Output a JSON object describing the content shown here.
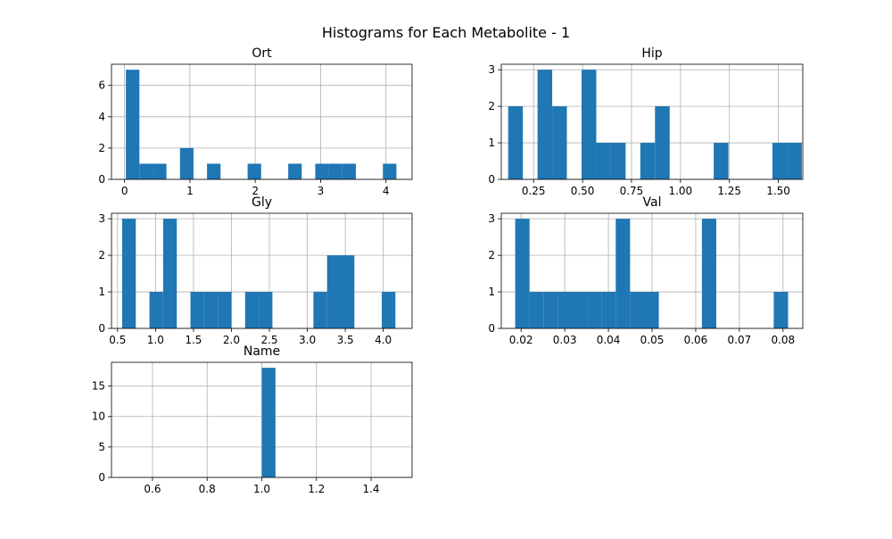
{
  "figure": {
    "suptitle": "Histograms for Each Metabolite - 1"
  },
  "style": {
    "bar_color": "#1f77b4",
    "grid_color": "#b0b0b0"
  },
  "chart_data": [
    {
      "type": "bar",
      "title": "Ort",
      "xlim": [
        -0.2,
        4.4
      ],
      "ylim": [
        0,
        7.35
      ],
      "xticks": [
        0,
        1,
        2,
        3,
        4
      ],
      "xtick_labels": [
        "0",
        "1",
        "2",
        "3",
        "4"
      ],
      "yticks": [
        0,
        2,
        4,
        6
      ],
      "ytick_labels": [
        "0",
        "2",
        "4",
        "6"
      ],
      "grid": true,
      "bin_edges": [
        0.02,
        0.227,
        0.434,
        0.641,
        0.848,
        1.055,
        1.262,
        1.469,
        1.676,
        1.883,
        2.09,
        2.297,
        2.504,
        2.711,
        2.918,
        3.125,
        3.332,
        3.539,
        3.746,
        3.953,
        4.16
      ],
      "counts": [
        7,
        1,
        1,
        0,
        2,
        0,
        1,
        0,
        0,
        1,
        0,
        0,
        1,
        0,
        1,
        1,
        1,
        0,
        0,
        1
      ]
    },
    {
      "type": "bar",
      "title": "Hip",
      "xlim": [
        0.085,
        1.625
      ],
      "ylim": [
        0,
        3.15
      ],
      "xticks": [
        0.25,
        0.5,
        0.75,
        1.0,
        1.25,
        1.5
      ],
      "xtick_labels": [
        "0.25",
        "0.50",
        "0.75",
        "1.00",
        "1.25",
        "1.50"
      ],
      "yticks": [
        0,
        1,
        2,
        3
      ],
      "ytick_labels": [
        "0",
        "1",
        "2",
        "3"
      ],
      "grid": true,
      "bin_edges": [
        0.12,
        0.195,
        0.27,
        0.345,
        0.42,
        0.495,
        0.57,
        0.645,
        0.72,
        0.795,
        0.87,
        0.945,
        1.02,
        1.095,
        1.17,
        1.245,
        1.32,
        1.395,
        1.47,
        1.545,
        1.62
      ],
      "counts": [
        2,
        0,
        3,
        2,
        0,
        3,
        1,
        1,
        0,
        1,
        2,
        0,
        0,
        0,
        1,
        0,
        0,
        0,
        1,
        1
      ]
    },
    {
      "type": "bar",
      "title": "Gly",
      "xlim": [
        0.42,
        4.38
      ],
      "ylim": [
        0,
        3.15
      ],
      "xticks": [
        0.5,
        1.0,
        1.5,
        2.0,
        2.5,
        3.0,
        3.5,
        4.0
      ],
      "xtick_labels": [
        "0.5",
        "1.0",
        "1.5",
        "2.0",
        "2.5",
        "3.0",
        "3.5",
        "4.0"
      ],
      "yticks": [
        0,
        1,
        2,
        3
      ],
      "ytick_labels": [
        "0",
        "1",
        "2",
        "3"
      ],
      "grid": true,
      "bin_edges": [
        0.56,
        0.74,
        0.92,
        1.1,
        1.28,
        1.46,
        1.64,
        1.82,
        2.0,
        2.18,
        2.36,
        2.54,
        2.72,
        2.9,
        3.08,
        3.26,
        3.44,
        3.62,
        3.8,
        3.98,
        4.16
      ],
      "counts": [
        3,
        0,
        1,
        3,
        0,
        1,
        1,
        1,
        0,
        1,
        1,
        0,
        0,
        0,
        1,
        2,
        2,
        0,
        0,
        1
      ]
    },
    {
      "type": "bar",
      "title": "Val",
      "xlim": [
        0.01547,
        0.08453
      ],
      "ylim": [
        0,
        3.15
      ],
      "xticks": [
        0.02,
        0.03,
        0.04,
        0.05,
        0.06,
        0.07,
        0.08
      ],
      "xtick_labels": [
        "0.02",
        "0.03",
        "0.04",
        "0.05",
        "0.06",
        "0.07",
        "0.08"
      ],
      "yticks": [
        0,
        1,
        2,
        3
      ],
      "ytick_labels": [
        "0",
        "1",
        "2",
        "3"
      ],
      "grid": true,
      "bin_edges": [
        0.01865,
        0.02194,
        0.02523,
        0.02852,
        0.03181,
        0.0351,
        0.03839,
        0.04168,
        0.04497,
        0.04826,
        0.05155,
        0.05484,
        0.05813,
        0.06142,
        0.06471,
        0.068,
        0.07129,
        0.07458,
        0.07787,
        0.08116,
        0.08445
      ],
      "counts": [
        3,
        1,
        1,
        1,
        1,
        1,
        1,
        3,
        1,
        1,
        0,
        0,
        0,
        3,
        0,
        0,
        0,
        0,
        1,
        0
      ]
    },
    {
      "type": "bar",
      "title": "Name",
      "xlim": [
        0.45,
        1.55
      ],
      "ylim": [
        0,
        18.9
      ],
      "xticks": [
        0.6,
        0.8,
        1.0,
        1.2,
        1.4
      ],
      "xtick_labels": [
        "0.6",
        "0.8",
        "1.0",
        "1.2",
        "1.4"
      ],
      "yticks": [
        0,
        5,
        10,
        15
      ],
      "ytick_labels": [
        "0",
        "5",
        "10",
        "15"
      ],
      "grid": true,
      "bin_edges": [
        0.5,
        0.55,
        0.6,
        0.65,
        0.7,
        0.75,
        0.8,
        0.85,
        0.9,
        0.95,
        1.0,
        1.05,
        1.1,
        1.15,
        1.2,
        1.25,
        1.3,
        1.35,
        1.4,
        1.45,
        1.5
      ],
      "counts": [
        0,
        0,
        0,
        0,
        0,
        0,
        0,
        0,
        0,
        0,
        18,
        0,
        0,
        0,
        0,
        0,
        0,
        0,
        0,
        0
      ]
    }
  ]
}
